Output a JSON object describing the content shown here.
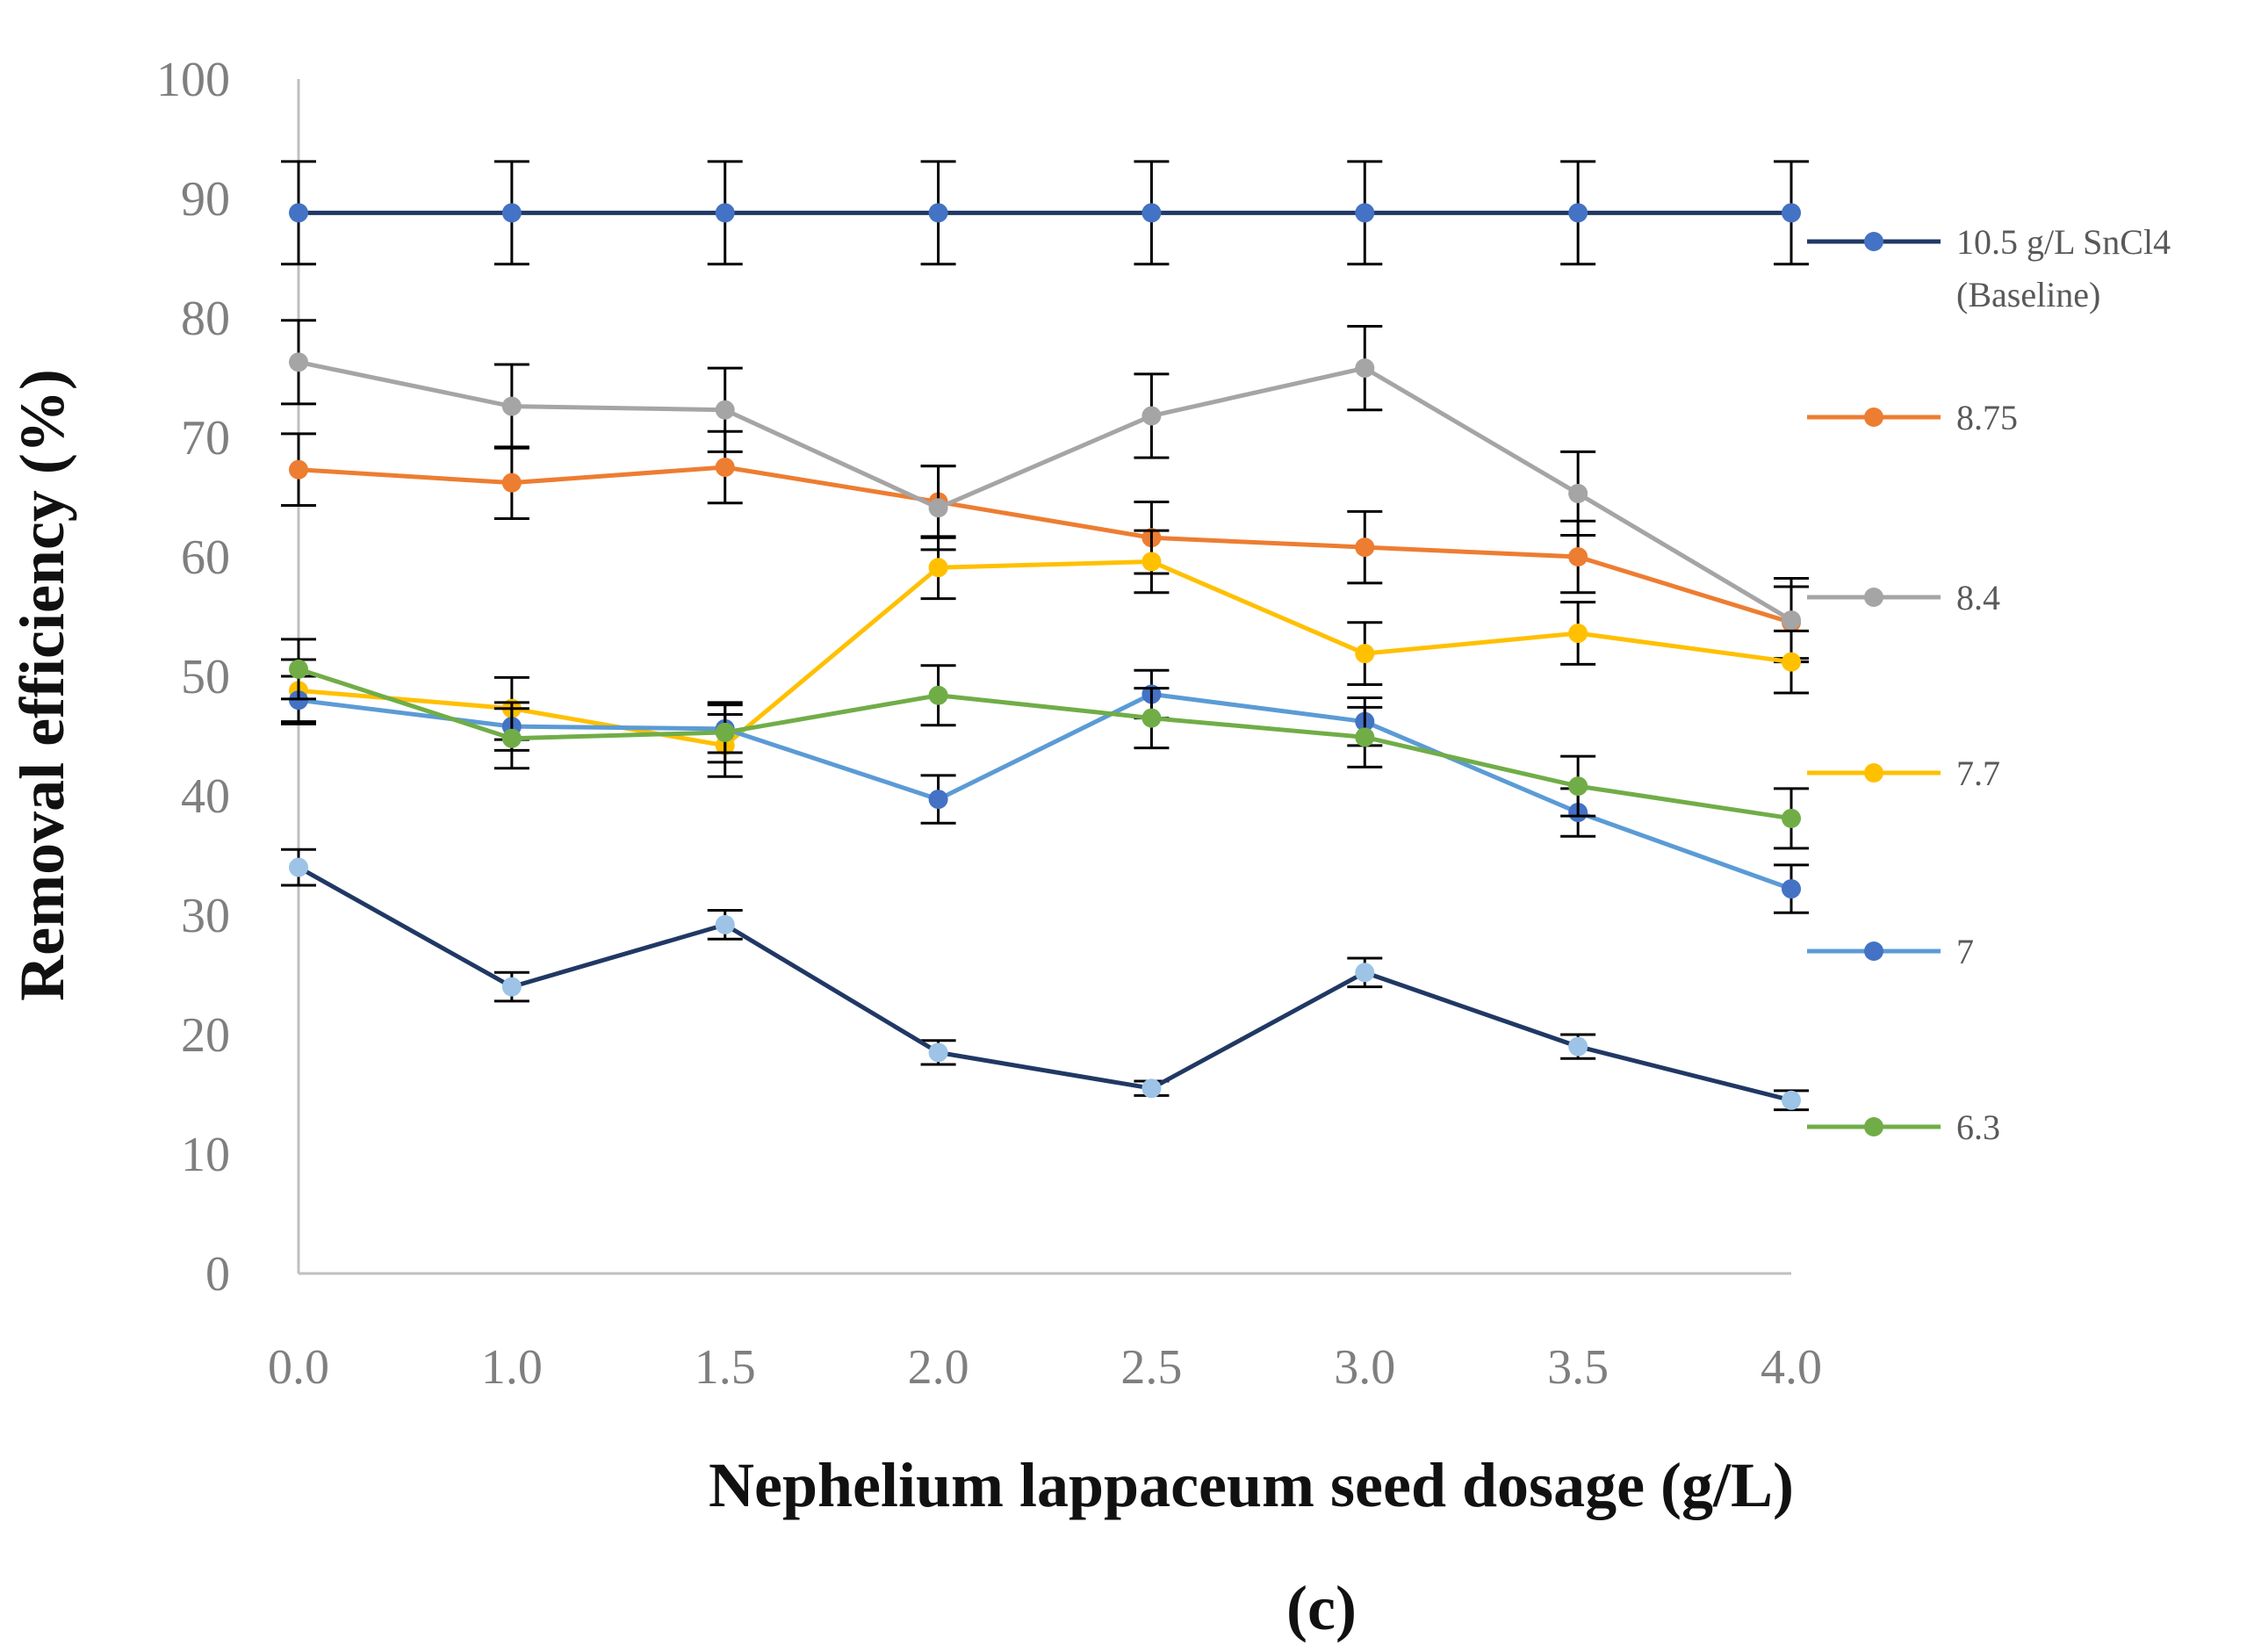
{
  "chart_data": {
    "type": "line",
    "panel_label": "(c)",
    "xlabel": "Nephelium lappaceum seed dosage (g/L)",
    "ylabel": "Removal efficiency (%)",
    "categories": [
      "0.0",
      "1.0",
      "1.5",
      "2.0",
      "2.5",
      "3.0",
      "3.5",
      "4.0"
    ],
    "ylim": [
      0,
      100
    ],
    "yticks": [
      "0",
      "10",
      "20",
      "30",
      "40",
      "50",
      "60",
      "70",
      "80",
      "90",
      "100"
    ],
    "grid": false,
    "error_bars": true,
    "series": [
      {
        "name": "10.5 g/L SnCl4",
        "name_line2": "(Baseline)",
        "color": "#203864",
        "marker_color": "#4472c4",
        "values": [
          88.8,
          88.8,
          88.8,
          88.8,
          88.8,
          88.8,
          88.8,
          88.8
        ],
        "errors": [
          4.3,
          4.3,
          4.3,
          4.3,
          4.3,
          4.3,
          4.3,
          4.3
        ]
      },
      {
        "name": "8.75",
        "color": "#ed7d31",
        "marker_color": "#ed7d31",
        "values": [
          67.3,
          66.2,
          67.5,
          64.6,
          61.6,
          60.8,
          60.0,
          54.5
        ],
        "errors": [
          3.0,
          3.0,
          3.0,
          3.0,
          3.0,
          3.0,
          3.0,
          3.0
        ]
      },
      {
        "name": "8.4",
        "color": "#a5a5a5",
        "marker_color": "#a5a5a5",
        "values": [
          76.3,
          72.6,
          72.3,
          64.1,
          71.8,
          75.8,
          65.3,
          54.7
        ],
        "errors": [
          3.5,
          3.5,
          3.5,
          3.5,
          3.5,
          3.5,
          3.5,
          3.5
        ]
      },
      {
        "name": "7.7",
        "color": "#ffc000",
        "marker_color": "#ffc000",
        "values": [
          48.8,
          47.3,
          44.2,
          59.1,
          59.6,
          51.9,
          53.6,
          51.2
        ],
        "errors": [
          2.6,
          2.6,
          2.6,
          2.6,
          2.6,
          2.6,
          2.6,
          2.6
        ]
      },
      {
        "name": "7",
        "color": "#5b9bd5",
        "marker_color": "#4472c4",
        "values": [
          48.0,
          45.8,
          45.6,
          39.7,
          48.5,
          46.2,
          38.6,
          32.2
        ],
        "errors": [
          2.0,
          2.0,
          2.0,
          2.0,
          2.0,
          2.0,
          2.0,
          2.0
        ]
      },
      {
        "name": "6.3",
        "color": "#70ad47",
        "marker_color": "#70ad47",
        "values": [
          50.6,
          44.8,
          45.3,
          48.4,
          46.5,
          44.9,
          40.8,
          38.1
        ],
        "errors": [
          2.5,
          2.5,
          2.5,
          2.5,
          2.5,
          2.5,
          2.5,
          2.5
        ]
      },
      {
        "name": "",
        "color": "#203864",
        "marker_color": "#9dc3e6",
        "values": [
          34.0,
          24.0,
          29.2,
          18.5,
          15.5,
          25.2,
          19.0,
          14.5
        ],
        "errors": [
          1.5,
          1.2,
          1.2,
          1.0,
          0.6,
          1.2,
          1.0,
          0.8
        ]
      }
    ]
  }
}
